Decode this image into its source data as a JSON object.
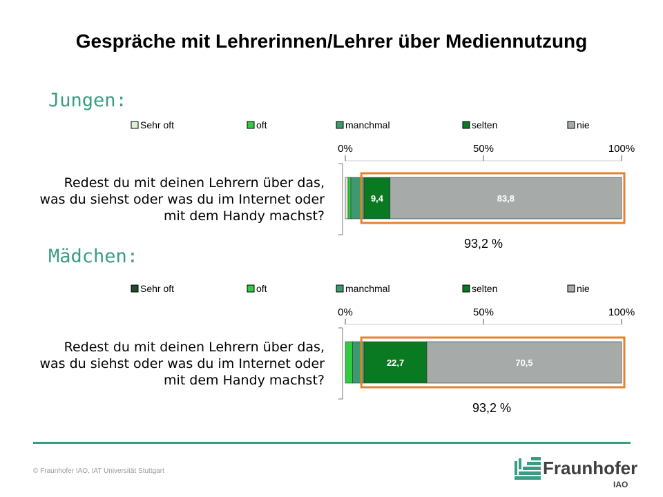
{
  "title": "Gespräche mit Lehrerinnen/Lehrer über Mediennutzung",
  "sections": {
    "boys_label": "Jungen:",
    "girls_label": "Mädchen:"
  },
  "colors": {
    "accent": "#3a9d83",
    "highlight": "#e5822a",
    "sehr_oft_boys": "#dff0d8",
    "sehr_oft_girls": "#1e4d2b",
    "oft": "#2ecc40",
    "manchmal": "#3c9a6e",
    "selten": "#0a7a22",
    "nie": "#a6aaa8"
  },
  "chart_data": [
    {
      "type": "bar",
      "orientation": "horizontal-stacked",
      "group": "Jungen",
      "category": "Redest du mit deinen Lehrern über das, was du siehst oder was du im Internet oder mit dem Handy machst?",
      "category_lines": [
        "Redest du mit deinen Lehrern über das,",
        "was du siehst oder was du im Internet oder",
        "mit dem Handy machst?"
      ],
      "series": [
        {
          "name": "Sehr oft",
          "value": 1.0,
          "label": ""
        },
        {
          "name": "oft",
          "value": 1.0,
          "label": ""
        },
        {
          "name": "manchmal",
          "value": 4.8,
          "label": ""
        },
        {
          "name": "selten",
          "value": 9.4,
          "label": "9,4"
        },
        {
          "name": "nie",
          "value": 83.8,
          "label": "83,8"
        }
      ],
      "xlim": [
        0,
        100
      ],
      "ticks": [
        "0%",
        "50%",
        "100%"
      ],
      "highlight_label": "93,2 %",
      "legend_position": "top"
    },
    {
      "type": "bar",
      "orientation": "horizontal-stacked",
      "group": "Mädchen",
      "category": "Redest du mit deinen Lehrern über das, was du siehst oder was du im Internet oder mit dem Handy machst?",
      "category_lines": [
        "Redest du mit deinen Lehrern über das,",
        "was du siehst oder was du im Internet oder",
        "mit dem Handy machst?"
      ],
      "series": [
        {
          "name": "Sehr oft",
          "value": 0.0,
          "label": ""
        },
        {
          "name": "oft",
          "value": 2.6,
          "label": ""
        },
        {
          "name": "manchmal",
          "value": 4.2,
          "label": ""
        },
        {
          "name": "selten",
          "value": 22.7,
          "label": "22,7"
        },
        {
          "name": "nie",
          "value": 70.5,
          "label": "70,5"
        }
      ],
      "xlim": [
        0,
        100
      ],
      "ticks": [
        "0%",
        "50%",
        "100%"
      ],
      "highlight_label": "93,2 %",
      "legend_position": "top"
    }
  ],
  "footer": {
    "copyright": "© Fraunhofer IAO, IAT Universität Stuttgart",
    "logo_word": "Fraunhofer",
    "logo_sub": "IAO"
  }
}
